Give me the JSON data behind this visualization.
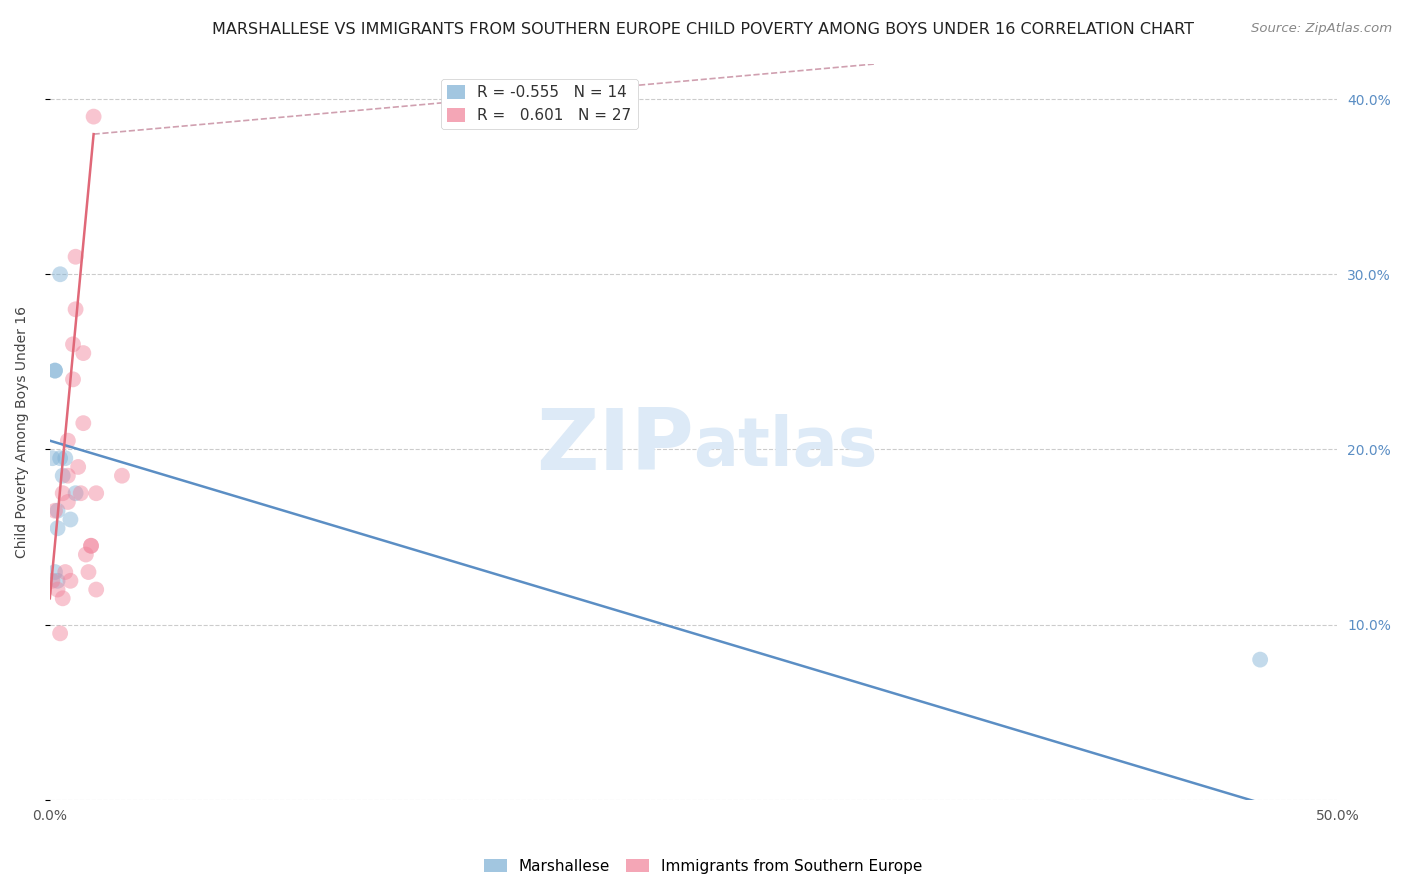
{
  "title": "MARSHALLESE VS IMMIGRANTS FROM SOUTHERN EUROPE CHILD POVERTY AMONG BOYS UNDER 16 CORRELATION CHART",
  "source": "Source: ZipAtlas.com",
  "ylabel": "Child Poverty Among Boys Under 16",
  "watermark_zip": "ZIP",
  "watermark_atlas": "atlas",
  "xlim": [
    0.0,
    0.5
  ],
  "ylim": [
    0.0,
    0.42
  ],
  "xtick_positions": [
    0.0,
    0.05,
    0.1,
    0.15,
    0.2,
    0.25,
    0.3,
    0.35,
    0.4,
    0.45,
    0.5
  ],
  "xtick_labels": [
    "0.0%",
    "",
    "",
    "",
    "",
    "",
    "",
    "",
    "",
    "",
    "50.0%"
  ],
  "ytick_positions": [
    0.0,
    0.1,
    0.2,
    0.3,
    0.4
  ],
  "ytick_labels_right": [
    "",
    "10.0%",
    "20.0%",
    "30.0%",
    "40.0%"
  ],
  "marshallese_x": [
    0.001,
    0.002,
    0.002,
    0.002,
    0.003,
    0.003,
    0.003,
    0.004,
    0.004,
    0.005,
    0.006,
    0.008,
    0.01,
    0.47
  ],
  "marshallese_y": [
    0.195,
    0.245,
    0.245,
    0.13,
    0.165,
    0.155,
    0.125,
    0.3,
    0.195,
    0.185,
    0.195,
    0.16,
    0.175,
    0.08
  ],
  "southern_europe_x": [
    0.001,
    0.002,
    0.003,
    0.004,
    0.005,
    0.005,
    0.006,
    0.007,
    0.007,
    0.007,
    0.008,
    0.009,
    0.009,
    0.01,
    0.01,
    0.011,
    0.012,
    0.013,
    0.013,
    0.014,
    0.015,
    0.016,
    0.016,
    0.017,
    0.018,
    0.018,
    0.028
  ],
  "southern_europe_y": [
    0.125,
    0.165,
    0.12,
    0.095,
    0.115,
    0.175,
    0.13,
    0.17,
    0.205,
    0.185,
    0.125,
    0.24,
    0.26,
    0.28,
    0.31,
    0.19,
    0.175,
    0.215,
    0.255,
    0.14,
    0.13,
    0.145,
    0.145,
    0.39,
    0.175,
    0.12,
    0.185
  ],
  "blue_line_x": [
    0.0,
    0.5
  ],
  "blue_line_y": [
    0.205,
    -0.015
  ],
  "pink_line_x": [
    0.0,
    0.017
  ],
  "pink_line_y": [
    0.115,
    0.38
  ],
  "dashed_line_x": [
    0.017,
    0.32
  ],
  "dashed_line_y": [
    0.38,
    0.42
  ],
  "marker_size": 130,
  "marker_alpha": 0.45,
  "blue_color": "#7bafd4",
  "pink_color": "#f08098",
  "blue_line_color": "#5b8ec4",
  "pink_line_color": "#e06878",
  "dashed_color": "#d0a0b0",
  "background_color": "#ffffff",
  "grid_color": "#cccccc",
  "title_fontsize": 11.5,
  "axis_label_fontsize": 10,
  "tick_fontsize": 10,
  "legend_fontsize": 11,
  "source_fontsize": 9.5,
  "watermark_fontsize_zip": 62,
  "watermark_fontsize_atlas": 48,
  "watermark_color": "#ddeaf7",
  "right_ytick_color": "#5b8ec4",
  "legend_r1": "R = -0.555   N = 14",
  "legend_r2": "R =   0.601   N = 27"
}
